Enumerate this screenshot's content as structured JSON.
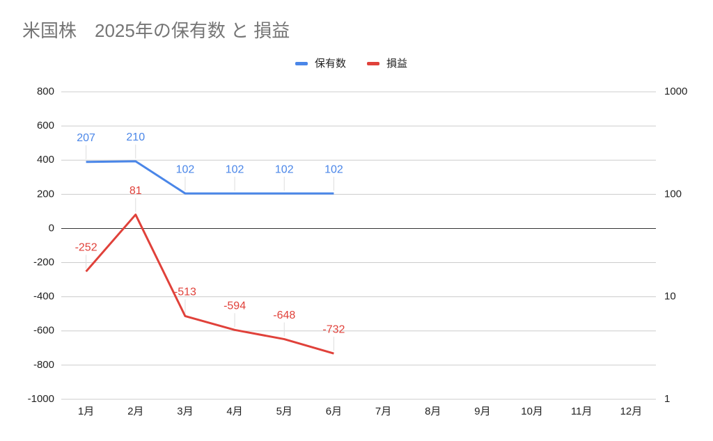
{
  "chart_data": {
    "type": "line",
    "title": "米国株　2025年の保有数 と 損益",
    "categories": [
      "1月",
      "2月",
      "3月",
      "4月",
      "5月",
      "6月",
      "7月",
      "8月",
      "9月",
      "10月",
      "11月",
      "12月"
    ],
    "series": [
      {
        "name": "保有数",
        "color": "#4a86e8",
        "axis": "y2",
        "values": [
          207,
          210,
          102,
          102,
          102,
          102,
          null,
          null,
          null,
          null,
          null,
          null
        ]
      },
      {
        "name": "損益",
        "color": "#e0413a",
        "values": [
          -252,
          81,
          -513,
          -594,
          -648,
          -732,
          null,
          null,
          null,
          null,
          null,
          null
        ]
      }
    ],
    "ylim": [
      -1000,
      800
    ],
    "yticks": [
      -1000,
      -800,
      -600,
      -400,
      -200,
      0,
      200,
      400,
      600,
      800
    ],
    "y2lim": [
      1,
      1000
    ],
    "y2ticks": [
      1,
      10,
      100,
      1000
    ],
    "y2log": true,
    "grid": true,
    "legend": "top",
    "data_labels": true
  }
}
